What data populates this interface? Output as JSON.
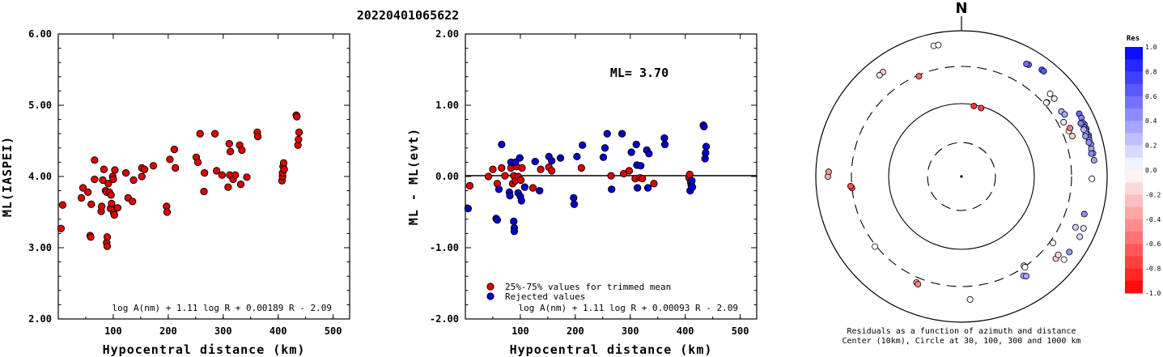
{
  "title": "20220401065622",
  "chart_data": [
    {
      "type": "scatter",
      "ylabel": "ML(IASPEI)",
      "xlabel": "Hypocentral distance (km)",
      "xlim": [
        0,
        530
      ],
      "ylim": [
        2.0,
        6.0
      ],
      "xticks": [
        "100",
        "200",
        "300",
        "400",
        "500"
      ],
      "yticks": [
        "2.00",
        "3.00",
        "4.00",
        "5.00",
        "6.00"
      ],
      "formula": "log A(nm) + 1.11 log R + 0.00189 R - 2.09",
      "marker_color": "#dd0000",
      "points": [
        [
          5,
          3.27
        ],
        [
          8,
          3.6
        ],
        [
          42,
          3.7
        ],
        [
          45,
          3.84
        ],
        [
          54,
          3.78
        ],
        [
          58,
          3.17
        ],
        [
          59,
          3.15
        ],
        [
          60,
          3.61
        ],
        [
          66,
          3.96
        ],
        [
          66,
          4.23
        ],
        [
          78,
          3.51
        ],
        [
          79,
          3.58
        ],
        [
          81,
          3.95
        ],
        [
          83,
          4.1
        ],
        [
          86,
          3.8
        ],
        [
          88,
          3.78
        ],
        [
          88,
          3.07
        ],
        [
          89,
          3.15
        ],
        [
          89,
          3.02
        ],
        [
          91,
          3.9
        ],
        [
          93,
          3.78
        ],
        [
          95,
          3.55
        ],
        [
          96,
          3.74
        ],
        [
          97,
          3.62
        ],
        [
          99,
          4.0
        ],
        [
          100,
          3.96
        ],
        [
          101,
          3.49
        ],
        [
          102,
          3.46
        ],
        [
          103,
          4.09
        ],
        [
          108,
          3.56
        ],
        [
          123,
          4.05
        ],
        [
          127,
          3.7
        ],
        [
          135,
          3.65
        ],
        [
          137,
          3.95
        ],
        [
          152,
          4.0
        ],
        [
          152,
          4.12
        ],
        [
          157,
          4.1
        ],
        [
          173,
          4.15
        ],
        [
          197,
          3.58
        ],
        [
          198,
          3.5
        ],
        [
          203,
          4.24
        ],
        [
          211,
          4.38
        ],
        [
          213,
          4.12
        ],
        [
          251,
          4.27
        ],
        [
          254,
          4.2
        ],
        [
          258,
          4.6
        ],
        [
          265,
          3.79
        ],
        [
          266,
          4.05
        ],
        [
          285,
          4.6
        ],
        [
          288,
          4.08
        ],
        [
          298,
          4.02
        ],
        [
          309,
          3.85
        ],
        [
          311,
          4.46
        ],
        [
          312,
          4.02
        ],
        [
          313,
          4.35
        ],
        [
          318,
          3.96
        ],
        [
          322,
          4.02
        ],
        [
          330,
          4.44
        ],
        [
          332,
          3.89
        ],
        [
          334,
          4.37
        ],
        [
          343,
          3.99
        ],
        [
          362,
          4.62
        ],
        [
          363,
          4.56
        ],
        [
          407,
          3.94
        ],
        [
          408,
          4.0
        ],
        [
          408,
          4.05
        ],
        [
          409,
          4.14
        ],
        [
          410,
          4.19
        ],
        [
          411,
          4.1
        ],
        [
          433,
          4.86
        ],
        [
          434,
          4.84
        ],
        [
          436,
          4.44
        ],
        [
          437,
          4.52
        ],
        [
          438,
          4.62
        ]
      ]
    },
    {
      "type": "scatter",
      "ylabel": "ML - ML(evt)",
      "xlabel": "Hypocentral distance (km)",
      "xlim": [
        0,
        530
      ],
      "ylim": [
        -2.0,
        2.0
      ],
      "xticks": [
        "100",
        "200",
        "300",
        "400",
        "500"
      ],
      "yticks": [
        "-2.00",
        "-1.00",
        "0.00",
        "1.00",
        "2.00"
      ],
      "annotation": "ML= 3.70",
      "formula": "log A(nm) + 1.11 log R + 0.00093 R - 2.09",
      "legend": [
        {
          "label": "25%-75% values for trimmed mean",
          "color": "#dd0000"
        },
        {
          "label": "Rejected values",
          "color": "#0000cc"
        }
      ],
      "red_points": [
        [
          8,
          -0.13
        ],
        [
          42,
          0.0
        ],
        [
          50,
          0.1
        ],
        [
          58,
          -0.1
        ],
        [
          66,
          0.12
        ],
        [
          72,
          0.01
        ],
        [
          83,
          0.12
        ],
        [
          86,
          -0.1
        ],
        [
          88,
          0.01
        ],
        [
          91,
          -0.06
        ],
        [
          93,
          0.14
        ],
        [
          96,
          0.0
        ],
        [
          101,
          -0.05
        ],
        [
          103,
          0.12
        ],
        [
          123,
          -0.16
        ],
        [
          137,
          0.1
        ],
        [
          152,
          0.13
        ],
        [
          157,
          0.08
        ],
        [
          211,
          0.12
        ],
        [
          265,
          0.01
        ],
        [
          288,
          0.04
        ],
        [
          298,
          0.08
        ],
        [
          309,
          -0.03
        ],
        [
          318,
          -0.02
        ],
        [
          322,
          -0.03
        ],
        [
          343,
          -0.1
        ],
        [
          407,
          -0.02
        ],
        [
          408,
          0.03
        ],
        [
          410,
          -0.08
        ]
      ],
      "blue_points": [
        [
          5,
          -0.45
        ],
        [
          56,
          -0.59
        ],
        [
          58,
          -0.61
        ],
        [
          61,
          -0.18
        ],
        [
          66,
          0.45
        ],
        [
          80,
          -0.22
        ],
        [
          81,
          -0.27
        ],
        [
          83,
          0.2
        ],
        [
          88,
          -0.63
        ],
        [
          89,
          -0.72
        ],
        [
          89,
          -0.77
        ],
        [
          91,
          0.2
        ],
        [
          96,
          -0.23
        ],
        [
          99,
          0.26
        ],
        [
          100,
          -0.28
        ],
        [
          102,
          -0.34
        ],
        [
          108,
          -0.15
        ],
        [
          127,
          0.21
        ],
        [
          135,
          -0.2
        ],
        [
          152,
          0.28
        ],
        [
          157,
          0.22
        ],
        [
          173,
          0.26
        ],
        [
          197,
          -0.3
        ],
        [
          198,
          -0.39
        ],
        [
          203,
          0.28
        ],
        [
          213,
          0.44
        ],
        [
          251,
          0.27
        ],
        [
          254,
          0.4
        ],
        [
          258,
          0.6
        ],
        [
          266,
          -0.18
        ],
        [
          285,
          0.6
        ],
        [
          302,
          0.34
        ],
        [
          311,
          0.45
        ],
        [
          312,
          0.16
        ],
        [
          313,
          -0.16
        ],
        [
          319,
          0.15
        ],
        [
          330,
          0.37
        ],
        [
          332,
          -0.16
        ],
        [
          334,
          0.32
        ],
        [
          362,
          0.54
        ],
        [
          363,
          0.45
        ],
        [
          409,
          -0.2
        ],
        [
          411,
          -0.12
        ],
        [
          412,
          -0.06
        ],
        [
          413,
          -0.15
        ],
        [
          433,
          0.72
        ],
        [
          434,
          0.7
        ],
        [
          436,
          0.25
        ],
        [
          437,
          0.33
        ],
        [
          438,
          0.42
        ]
      ]
    },
    {
      "type": "polar_scatter",
      "north_label": "N",
      "caption_line1": "Residuals as a function of azimuth and distance",
      "caption_line2": "Center (10km), Circle at 30, 100, 300 and 1000 km",
      "colorbar_title": "Res",
      "colorbar_ticks": [
        "1.0",
        "0.8",
        "0.6",
        "0.4",
        "0.2",
        "0.0",
        "-0.2",
        "-0.4",
        "-0.6",
        "-0.8",
        "-1.0"
      ],
      "points": [
        {
          "az": 348,
          "r": 1000,
          "res": 0.0
        },
        {
          "az": 350,
          "r": 995,
          "res": 0.0
        },
        {
          "az": 323,
          "r": 860,
          "res": -0.2
        },
        {
          "az": 321,
          "r": 845,
          "res": -0.15
        },
        {
          "az": 337,
          "r": 290,
          "res": -0.6
        },
        {
          "az": 31,
          "r": 850,
          "res": 0.6
        },
        {
          "az": 30,
          "r": 830,
          "res": 0.55
        },
        {
          "az": 37,
          "r": 1000,
          "res": 0.6
        },
        {
          "az": 38,
          "r": 1000,
          "res": 0.65
        },
        {
          "az": 10,
          "r": 96,
          "res": -0.8
        },
        {
          "az": 16,
          "r": 95,
          "res": -0.75
        },
        {
          "az": 49,
          "r": 350,
          "res": -0.1
        },
        {
          "az": 49,
          "r": 340,
          "res": 0.0
        },
        {
          "az": 47,
          "r": 530,
          "res": 0.0
        },
        {
          "az": 50,
          "r": 530,
          "res": 0.1
        },
        {
          "az": 57,
          "r": 480,
          "res": 0.3
        },
        {
          "az": 59,
          "r": 510,
          "res": 0.35
        },
        {
          "az": 62,
          "r": 400,
          "res": 0.1
        },
        {
          "az": 67,
          "r": 420,
          "res": 0.0
        },
        {
          "az": 70,
          "r": 450,
          "res": -0.2
        },
        {
          "az": 66,
          "r": 470,
          "res": -0.5
        },
        {
          "az": 67,
          "r": 1000,
          "res": 0.45
        },
        {
          "az": 69,
          "r": 1000,
          "res": 0.5
        },
        {
          "az": 72,
          "r": 1000,
          "res": 0.55
        },
        {
          "az": 62,
          "r": 990,
          "res": 0.6
        },
        {
          "az": 64,
          "r": 1000,
          "res": 0.5
        },
        {
          "az": 66,
          "r": 940,
          "res": 0.45
        },
        {
          "az": 68,
          "r": 930,
          "res": 0.6
        },
        {
          "az": 70,
          "r": 960,
          "res": 0.55
        },
        {
          "az": 73,
          "r": 980,
          "res": 0.5
        },
        {
          "az": 76,
          "r": 1000,
          "res": 0.4
        },
        {
          "az": 74,
          "r": 960,
          "res": 0.45
        },
        {
          "az": 71,
          "r": 900,
          "res": 0.35
        },
        {
          "az": 69,
          "r": 880,
          "res": 0.3
        },
        {
          "az": 75,
          "r": 920,
          "res": 0.45
        },
        {
          "az": 78,
          "r": 960,
          "res": 0.35
        },
        {
          "az": 80,
          "r": 1000,
          "res": 0.3
        },
        {
          "az": 83,
          "r": 1000,
          "res": 0.35
        },
        {
          "az": 80,
          "r": 920,
          "res": 0.45
        },
        {
          "az": 66,
          "r": 860,
          "res": 0.5
        },
        {
          "az": 72,
          "r": 850,
          "res": 0.4
        },
        {
          "az": 91,
          "r": 850,
          "res": 0.0
        },
        {
          "az": 107,
          "r": 770,
          "res": 0.45
        },
        {
          "az": 114,
          "r": 640,
          "res": 0.2
        },
        {
          "az": 126,
          "r": 350,
          "res": 0.0
        },
        {
          "az": 113,
          "r": 950,
          "res": 0.1
        },
        {
          "az": 117,
          "r": 960,
          "res": 0.15
        },
        {
          "az": 131,
          "r": 650,
          "res": -0.2
        },
        {
          "az": 129,
          "r": 630,
          "res": -0.15
        },
        {
          "az": 125,
          "r": 910,
          "res": 0.4
        },
        {
          "az": 129,
          "r": 920,
          "res": 0.0
        },
        {
          "az": 145,
          "r": 290,
          "res": -0.2
        },
        {
          "az": 145,
          "r": 310,
          "res": 0.0
        },
        {
          "az": 148,
          "r": 430,
          "res": 0.3
        },
        {
          "az": 147,
          "r": 470,
          "res": 0.35
        },
        {
          "az": 176,
          "r": 590,
          "res": 0.0
        },
        {
          "az": 203,
          "r": 390,
          "res": -0.4
        },
        {
          "az": 202,
          "r": 410,
          "res": -0.5
        },
        {
          "az": 231,
          "r": 320,
          "res": 0.0
        },
        {
          "az": 264,
          "r": 300,
          "res": -0.7
        },
        {
          "az": 265,
          "r": 320,
          "res": -0.7
        },
        {
          "az": 270,
          "r": 1000,
          "res": -0.3
        },
        {
          "az": 272,
          "r": 970,
          "res": -0.4
        }
      ]
    }
  ]
}
